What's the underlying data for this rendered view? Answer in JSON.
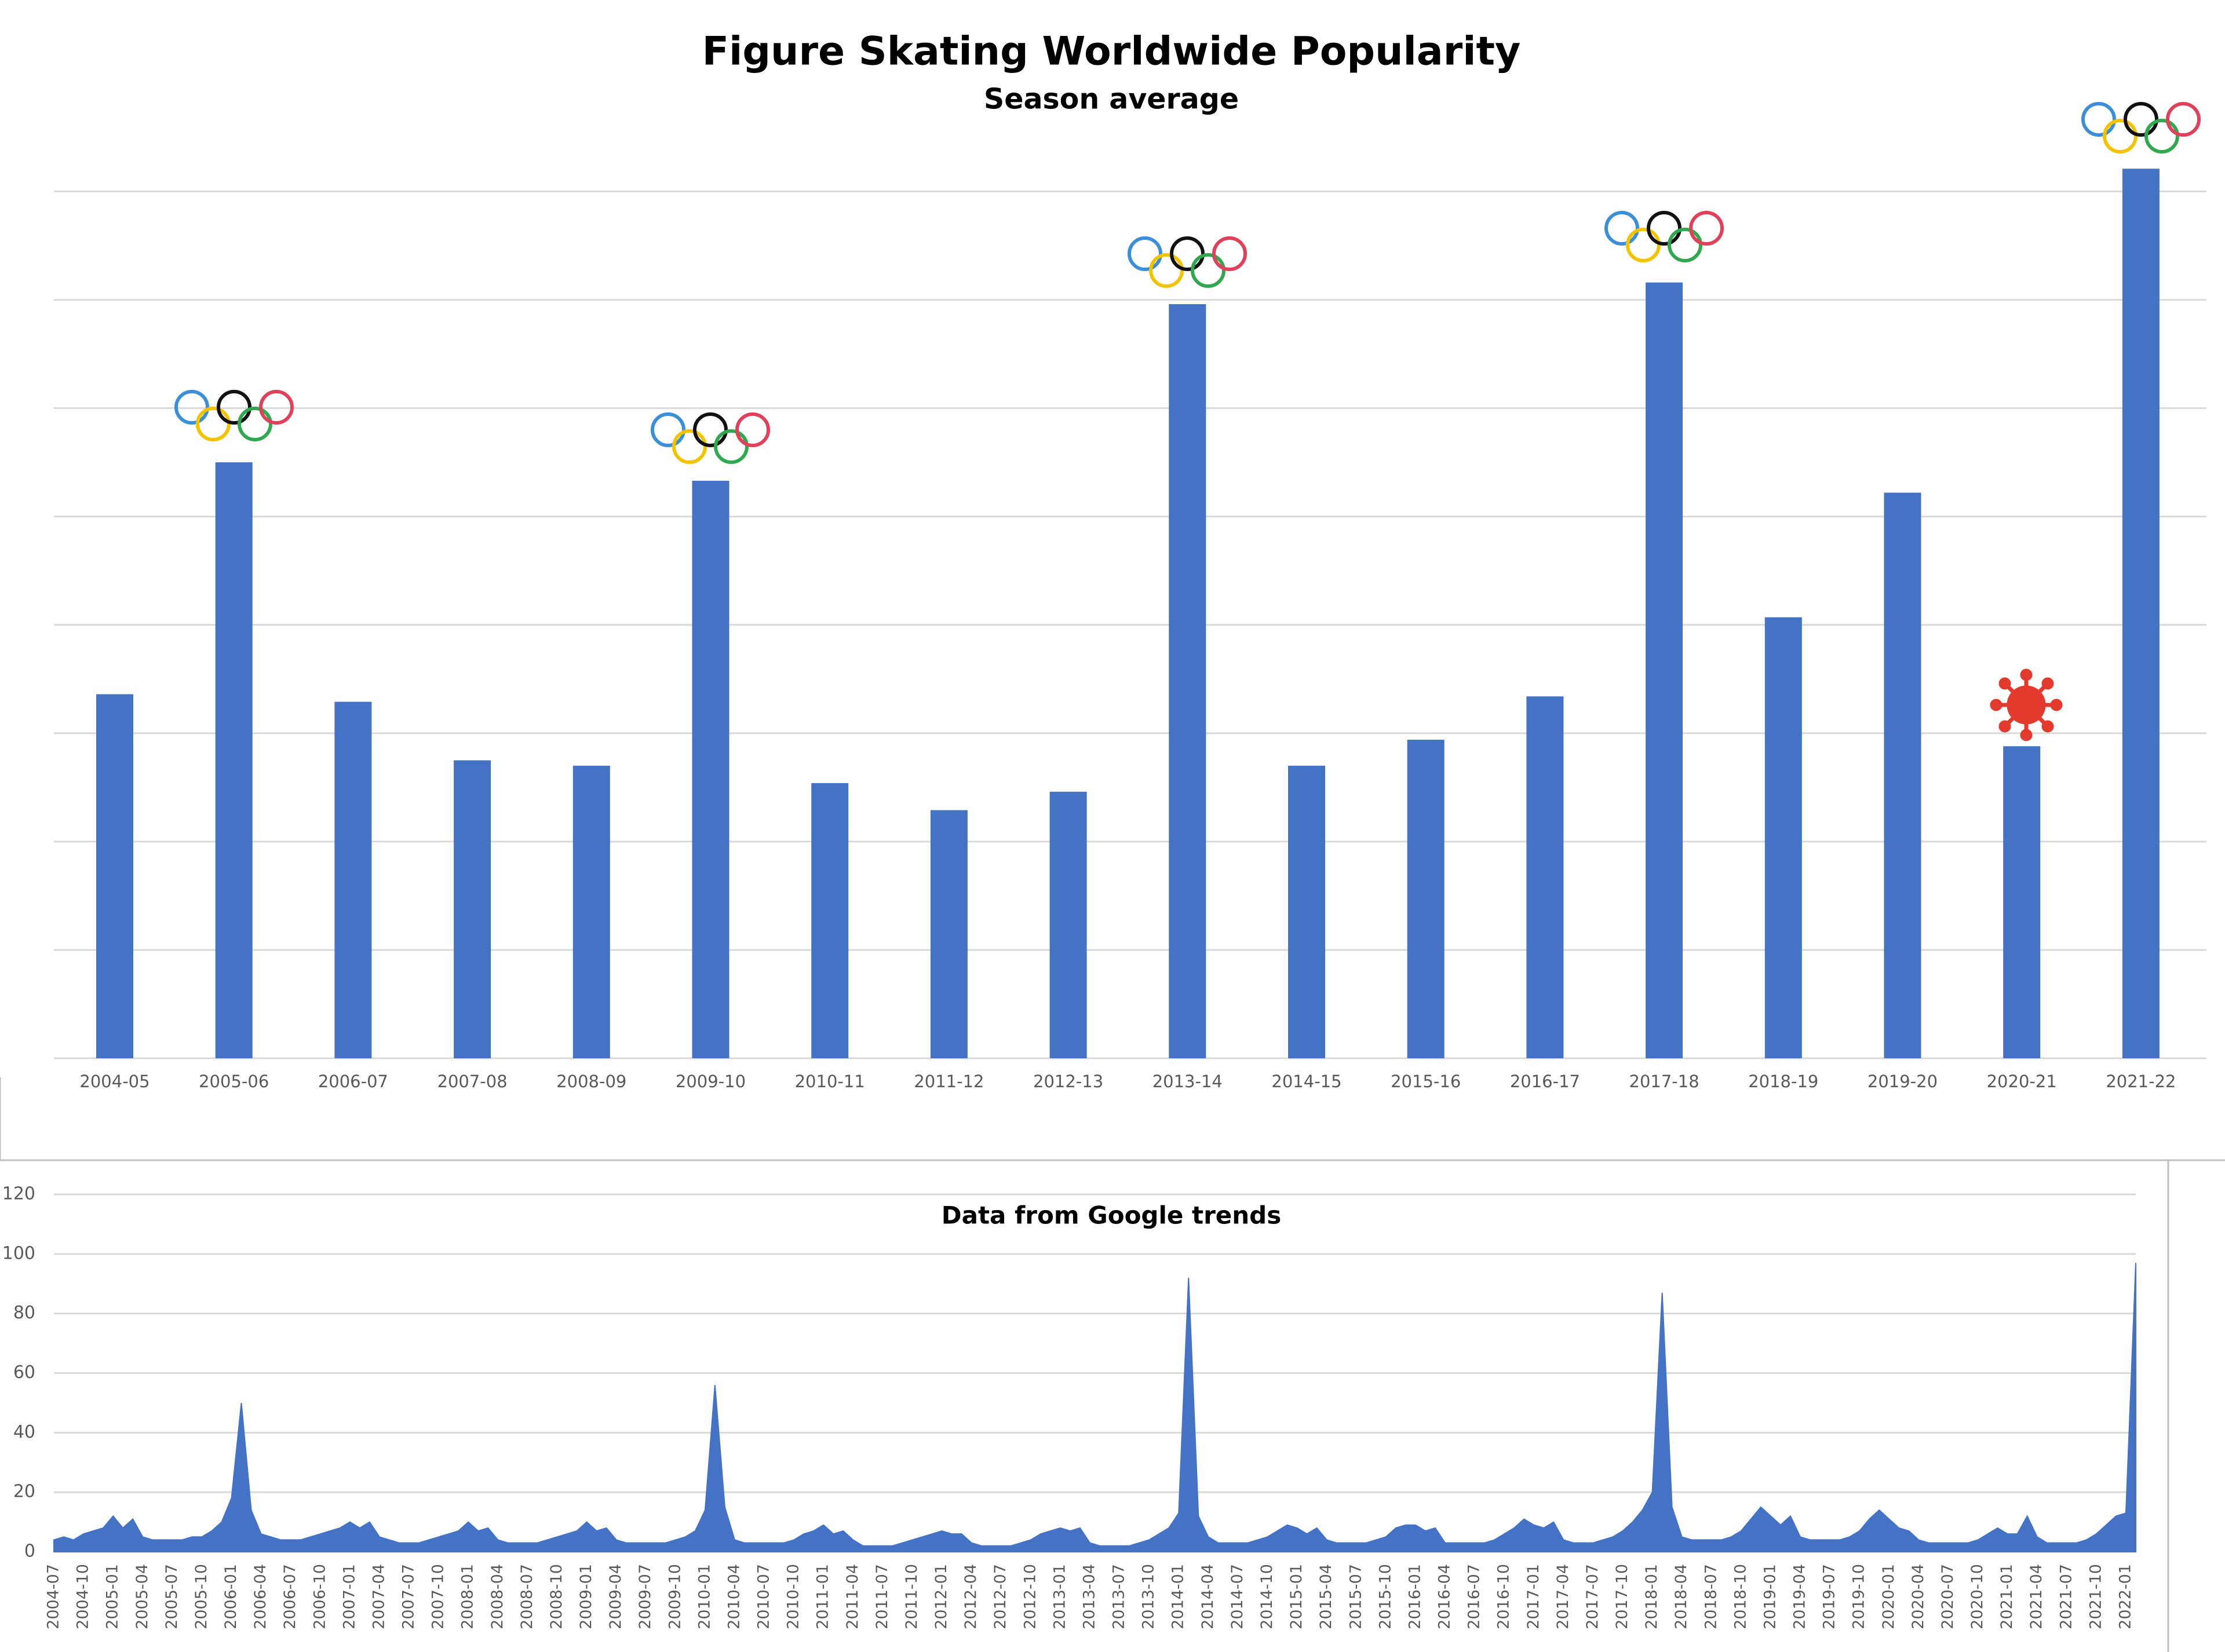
{
  "chart_data": [
    {
      "type": "bar",
      "title": "Figure Skating Worldwide Popularity",
      "subtitle": "Season average",
      "categories": [
        "2004-05",
        "2005-06",
        "2006-07",
        "2007-08",
        "2008-09",
        "2009-10",
        "2010-11",
        "2011-12",
        "2012-13",
        "2013-14",
        "2014-15",
        "2015-16",
        "2016-17",
        "2017-18",
        "2018-19",
        "2019-20",
        "2020-21",
        "2021-22"
      ],
      "values": [
        3.36,
        5.5,
        3.29,
        2.75,
        2.7,
        5.33,
        2.54,
        2.29,
        2.46,
        6.96,
        2.7,
        2.94,
        3.34,
        7.16,
        4.07,
        5.22,
        2.88,
        8.21
      ],
      "color": "#4472c4",
      "ylim": [
        0,
        8.5
      ],
      "yticks": [
        0,
        1,
        2,
        3,
        4,
        5,
        6,
        7,
        8
      ],
      "ytick_labels": false,
      "grid": true
    },
    {
      "type": "area",
      "title": "Data from Google trends",
      "categories": [
        "2004-07",
        null,
        null,
        "2004-10",
        null,
        null,
        "2005-01",
        null,
        null,
        "2005-04",
        null,
        null,
        "2005-07",
        null,
        null,
        "2005-10",
        null,
        null,
        "2006-01",
        null,
        null,
        "2006-04",
        null,
        null,
        "2006-07",
        null,
        null,
        "2006-10",
        null,
        null,
        "2007-01",
        null,
        null,
        "2007-04",
        null,
        null,
        "2007-07",
        null,
        null,
        "2007-10",
        null,
        null,
        "2008-01",
        null,
        null,
        "2008-04",
        null,
        null,
        "2008-07",
        null,
        null,
        "2008-10",
        null,
        null,
        "2009-01",
        null,
        null,
        "2009-04",
        null,
        null,
        "2009-07",
        null,
        null,
        "2009-10",
        null,
        null,
        "2010-01",
        null,
        null,
        "2010-04",
        null,
        null,
        "2010-07",
        null,
        null,
        "2010-10",
        null,
        null,
        "2011-01",
        null,
        null,
        "2011-04",
        null,
        null,
        "2011-07",
        null,
        null,
        "2011-10",
        null,
        null,
        "2012-01",
        null,
        null,
        "2012-04",
        null,
        null,
        "2012-07",
        null,
        null,
        "2012-10",
        null,
        null,
        "2013-01",
        null,
        null,
        "2013-04",
        null,
        null,
        "2013-07",
        null,
        null,
        "2013-10",
        null,
        null,
        "2014-01",
        null,
        null,
        "2014-04",
        null,
        null,
        "2014-07",
        null,
        null,
        "2014-10",
        null,
        null,
        "2015-01",
        null,
        null,
        "2015-04",
        null,
        null,
        "2015-07",
        null,
        null,
        "2015-10",
        null,
        null,
        "2016-01",
        null,
        null,
        "2016-04",
        null,
        null,
        "2016-07",
        null,
        null,
        "2016-10",
        null,
        null,
        "2017-01",
        null,
        null,
        "2017-04",
        null,
        null,
        "2017-07",
        null,
        null,
        "2017-10",
        null,
        null,
        "2018-01",
        null,
        null,
        "2018-04",
        null,
        null,
        "2018-07",
        null,
        null,
        "2018-10",
        null,
        null,
        "2019-01",
        null,
        null,
        "2019-04",
        null,
        null,
        "2019-07",
        null,
        null,
        "2019-10",
        null,
        null,
        "2020-01",
        null,
        null,
        "2020-04",
        null,
        null,
        "2020-07",
        null,
        null,
        "2020-10",
        null,
        null,
        "2021-01",
        null,
        null,
        "2021-04",
        null,
        null,
        "2021-07",
        null,
        null,
        "2021-10",
        null,
        null,
        "2022-01",
        null
      ],
      "values": [
        4,
        5,
        4,
        6,
        7,
        8,
        12,
        8,
        11,
        5,
        4,
        4,
        4,
        4,
        5,
        5,
        7,
        10,
        18,
        50,
        14,
        6,
        5,
        4,
        4,
        4,
        5,
        6,
        7,
        8,
        10,
        8,
        10,
        5,
        4,
        3,
        3,
        3,
        4,
        5,
        6,
        7,
        10,
        7,
        8,
        4,
        3,
        3,
        3,
        3,
        4,
        5,
        6,
        7,
        10,
        7,
        8,
        4,
        3,
        3,
        3,
        3,
        3,
        4,
        5,
        7,
        14,
        56,
        15,
        4,
        3,
        3,
        3,
        3,
        3,
        4,
        6,
        7,
        9,
        6,
        7,
        4,
        2,
        2,
        2,
        2,
        3,
        4,
        5,
        6,
        7,
        6,
        6,
        3,
        2,
        2,
        2,
        2,
        3,
        4,
        6,
        7,
        8,
        7,
        8,
        3,
        2,
        2,
        2,
        2,
        3,
        4,
        6,
        8,
        13,
        92,
        12,
        5,
        3,
        3,
        3,
        3,
        4,
        5,
        7,
        9,
        8,
        6,
        8,
        4,
        3,
        3,
        3,
        3,
        4,
        5,
        8,
        9,
        9,
        7,
        8,
        3,
        3,
        3,
        3,
        3,
        4,
        6,
        8,
        11,
        9,
        8,
        10,
        4,
        3,
        3,
        3,
        4,
        5,
        7,
        10,
        14,
        20,
        87,
        15,
        5,
        4,
        4,
        4,
        4,
        5,
        7,
        11,
        15,
        12,
        9,
        12,
        5,
        4,
        4,
        4,
        4,
        5,
        7,
        11,
        14,
        11,
        8,
        7,
        4,
        3,
        3,
        3,
        3,
        3,
        4,
        6,
        8,
        6,
        6,
        12,
        5,
        3,
        3,
        3,
        3,
        4,
        6,
        9,
        12,
        13,
        97
      ],
      "color": "#4472c4",
      "ylim": [
        0,
        120
      ],
      "yticks": [
        0,
        20,
        40,
        60,
        80,
        100,
        120
      ],
      "grid": true
    }
  ]
}
